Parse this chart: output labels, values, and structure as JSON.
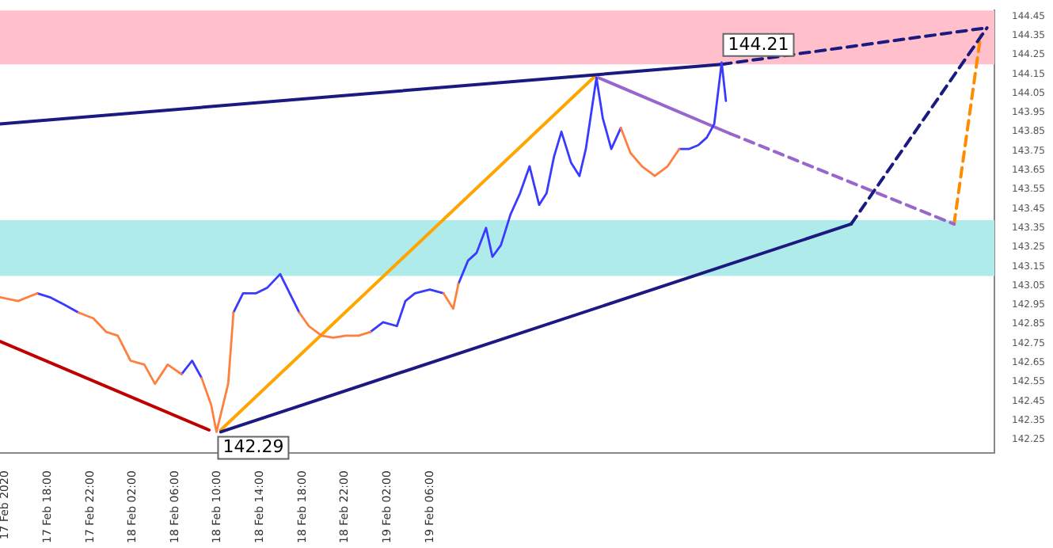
{
  "chart_data": {
    "type": "line",
    "legend": false,
    "grid": false,
    "x": [
      "2020-02-17T13:30",
      "2020-02-17T15:12",
      "2020-02-17T17:00",
      "2020-02-17T18:12",
      "2020-02-17T19:36",
      "2020-02-17T20:54",
      "2020-02-17T22:18",
      "2020-02-17T23:30",
      "2020-02-18T00:36",
      "2020-02-18T01:48",
      "2020-02-18T03:06",
      "2020-02-18T04:06",
      "2020-02-18T05:18",
      "2020-02-18T06:36",
      "2020-02-18T07:36",
      "2020-02-18T08:30",
      "2020-02-18T09:24",
      "2020-02-18T09:54",
      "2020-02-18T11:00",
      "2020-02-18T11:30",
      "2020-02-18T12:24",
      "2020-02-18T13:36",
      "2020-02-18T14:42",
      "2020-02-18T15:54",
      "2020-02-18T16:48",
      "2020-02-18T17:42",
      "2020-02-18T18:36",
      "2020-02-18T19:48",
      "2020-02-18T20:54",
      "2020-02-18T22:06",
      "2020-02-18T23:18",
      "2020-02-19T00:24",
      "2020-02-19T01:36",
      "2020-02-19T02:54",
      "2020-02-19T03:42",
      "2020-02-19T04:36",
      "2020-02-19T06:00",
      "2020-02-19T07:18",
      "2020-02-19T08:12",
      "2020-02-19T08:42",
      "2020-02-19T09:36",
      "2020-02-19T10:24",
      "2020-02-19T11:18",
      "2020-02-19T11:54",
      "2020-02-19T12:42",
      "2020-02-19T13:36",
      "2020-02-19T14:30",
      "2020-02-19T15:24",
      "2020-02-19T16:18",
      "2020-02-19T17:00",
      "2020-02-19T17:42",
      "2020-02-19T18:24",
      "2020-02-19T19:18",
      "2020-02-19T20:06",
      "2020-02-19T20:42",
      "2020-02-19T21:42",
      "2020-02-19T22:18",
      "2020-02-19T23:06",
      "2020-02-20T00:00",
      "2020-02-20T00:54",
      "2020-02-20T02:00",
      "2020-02-20T03:12",
      "2020-02-20T04:24",
      "2020-02-20T05:30",
      "2020-02-20T06:24",
      "2020-02-20T07:18",
      "2020-02-20T08:06",
      "2020-02-20T08:48",
      "2020-02-20T09:30",
      "2020-02-20T09:54"
    ],
    "xlim": [
      "2020-02-17T13:30",
      "2020-02-21T11:12"
    ],
    "xticks": [
      {
        "value": "2020-02-17T14:00",
        "label": "17 Feb 2020"
      },
      {
        "value": "2020-02-17T18:00",
        "label": "17 Feb 18:00"
      },
      {
        "value": "2020-02-17T22:00",
        "label": "17 Feb 22:00"
      },
      {
        "value": "2020-02-18T02:00",
        "label": "18 Feb 02:00"
      },
      {
        "value": "2020-02-18T06:00",
        "label": "18 Feb 06:00"
      },
      {
        "value": "2020-02-18T10:00",
        "label": "18 Feb 10:00"
      },
      {
        "value": "2020-02-18T14:00",
        "label": "18 Feb 14:00"
      },
      {
        "value": "2020-02-18T18:00",
        "label": "18 Feb 18:00"
      },
      {
        "value": "2020-02-18T22:00",
        "label": "18 Feb 22:00"
      },
      {
        "value": "2020-02-19T02:00",
        "label": "19 Feb 02:00"
      },
      {
        "value": "2020-02-19T06:00",
        "label": "19 Feb 06:00"
      }
    ],
    "ylim": [
      142.18,
      144.48
    ],
    "yticks": [
      {
        "value": 144.45,
        "label": "144.45"
      },
      {
        "value": 144.35,
        "label": "144.35"
      },
      {
        "value": 144.25,
        "label": "144.25"
      },
      {
        "value": 144.15,
        "label": "144.15"
      },
      {
        "value": 144.05,
        "label": "144.05"
      },
      {
        "value": 143.95,
        "label": "143.95"
      },
      {
        "value": 143.85,
        "label": "143.85"
      },
      {
        "value": 143.75,
        "label": "143.75"
      },
      {
        "value": 143.65,
        "label": "143.65"
      },
      {
        "value": 143.55,
        "label": "143.55"
      },
      {
        "value": 143.45,
        "label": "143.45"
      },
      {
        "value": 143.35,
        "label": "143.35"
      },
      {
        "value": 143.25,
        "label": "143.25"
      },
      {
        "value": 143.15,
        "label": "143.15"
      },
      {
        "value": 143.05,
        "label": "143.05"
      },
      {
        "value": 142.95,
        "label": "142.95"
      },
      {
        "value": 142.85,
        "label": "142.85"
      },
      {
        "value": 142.75,
        "label": "142.75"
      },
      {
        "value": 142.65,
        "label": "142.65"
      },
      {
        "value": 142.55,
        "label": "142.55"
      },
      {
        "value": 142.45,
        "label": "142.45"
      },
      {
        "value": 142.35,
        "label": "142.35"
      },
      {
        "value": 142.25,
        "label": "142.25"
      }
    ],
    "bands": [
      {
        "axis": "y",
        "from": 144.2,
        "to": 144.48,
        "color": "#ffc0cb"
      },
      {
        "axis": "y",
        "from": 143.1,
        "to": 143.39,
        "color": "#b0ebeb"
      }
    ],
    "annotations": [
      {
        "text": "142.29",
        "x": "2020-02-18T09:54",
        "y": 142.29
      },
      {
        "text": "144.21",
        "x": "2020-02-20T09:30",
        "y": 144.21
      }
    ],
    "series": [
      {
        "color": "#ff7f3f",
        "values": [
          142.99,
          142.97,
          143.01,
          null,
          null,
          142.91,
          142.88,
          142.81,
          142.79,
          142.66,
          142.64,
          142.54,
          142.64,
          142.59,
          null,
          142.57,
          142.43,
          142.29,
          142.54,
          142.91,
          null,
          null,
          null,
          null,
          null,
          142.91,
          142.84,
          142.79,
          142.78,
          142.79,
          142.79,
          142.81,
          null,
          null,
          null,
          null,
          null,
          143.01,
          142.93,
          143.06,
          null,
          null,
          null,
          null,
          null,
          null,
          null,
          null,
          null,
          null,
          null,
          null,
          null,
          null,
          null,
          null,
          null,
          null,
          143.87,
          143.74,
          143.67,
          143.62,
          143.67,
          143.76,
          null,
          null,
          null,
          null,
          null,
          null
        ]
      },
      {
        "color": "#3a3aff",
        "values": [
          null,
          null,
          143.01,
          142.99,
          142.95,
          142.91,
          null,
          null,
          null,
          null,
          null,
          null,
          null,
          142.59,
          142.66,
          142.57,
          null,
          null,
          null,
          142.91,
          143.01,
          143.01,
          143.04,
          143.11,
          143.01,
          142.91,
          null,
          null,
          null,
          null,
          null,
          142.81,
          142.86,
          142.84,
          142.97,
          143.01,
          143.03,
          143.01,
          null,
          143.06,
          143.18,
          143.22,
          143.35,
          143.2,
          143.26,
          143.42,
          143.53,
          143.67,
          143.47,
          143.53,
          143.72,
          143.85,
          143.69,
          143.62,
          143.76,
          144.13,
          143.92,
          143.76,
          143.87,
          null,
          null,
          null,
          null,
          143.76,
          143.76,
          143.78,
          143.82,
          143.89,
          144.21,
          144.01
        ]
      },
      {
        "color": "#1a1a80",
        "x": [
          "2020-02-17T13:30",
          "2020-02-20T09:30"
        ],
        "values": [
          143.89,
          144.2
        ]
      },
      {
        "color": "#1a1a80",
        "x": [
          "2020-02-20T09:30",
          "2020-02-21T10:30"
        ],
        "values": [
          144.2,
          144.39
        ],
        "line_style": "dashed"
      },
      {
        "color": "#1a1a80",
        "x": [
          "2020-02-18T10:18",
          "2020-02-20T21:42"
        ],
        "values": [
          142.29,
          143.37
        ]
      },
      {
        "color": "#1a1a80",
        "x": [
          "2020-02-20T21:42",
          "2020-02-21T10:30"
        ],
        "values": [
          143.37,
          144.39
        ],
        "line_style": "dashed"
      },
      {
        "color": "#c00000",
        "x": [
          "2020-02-17T13:30",
          "2020-02-18T09:12"
        ],
        "values": [
          142.76,
          142.3
        ]
      },
      {
        "color": "#ffa500",
        "x": [
          "2020-02-18T10:18",
          "2020-02-19T21:36"
        ],
        "values": [
          142.3,
          144.14
        ]
      },
      {
        "color": "#9966cc",
        "x": [
          "2020-02-19T21:54",
          "2020-02-20T10:18"
        ],
        "values": [
          144.13,
          143.84
        ]
      },
      {
        "color": "#9966cc",
        "x": [
          "2020-02-20T10:18",
          "2020-02-21T07:24"
        ],
        "values": [
          143.84,
          143.37
        ],
        "line_style": "dashed"
      },
      {
        "color": "#ff8c00",
        "x": [
          "2020-02-21T07:24",
          "2020-02-21T09:54"
        ],
        "values": [
          143.37,
          144.35
        ],
        "line_style": "dashed"
      }
    ]
  }
}
